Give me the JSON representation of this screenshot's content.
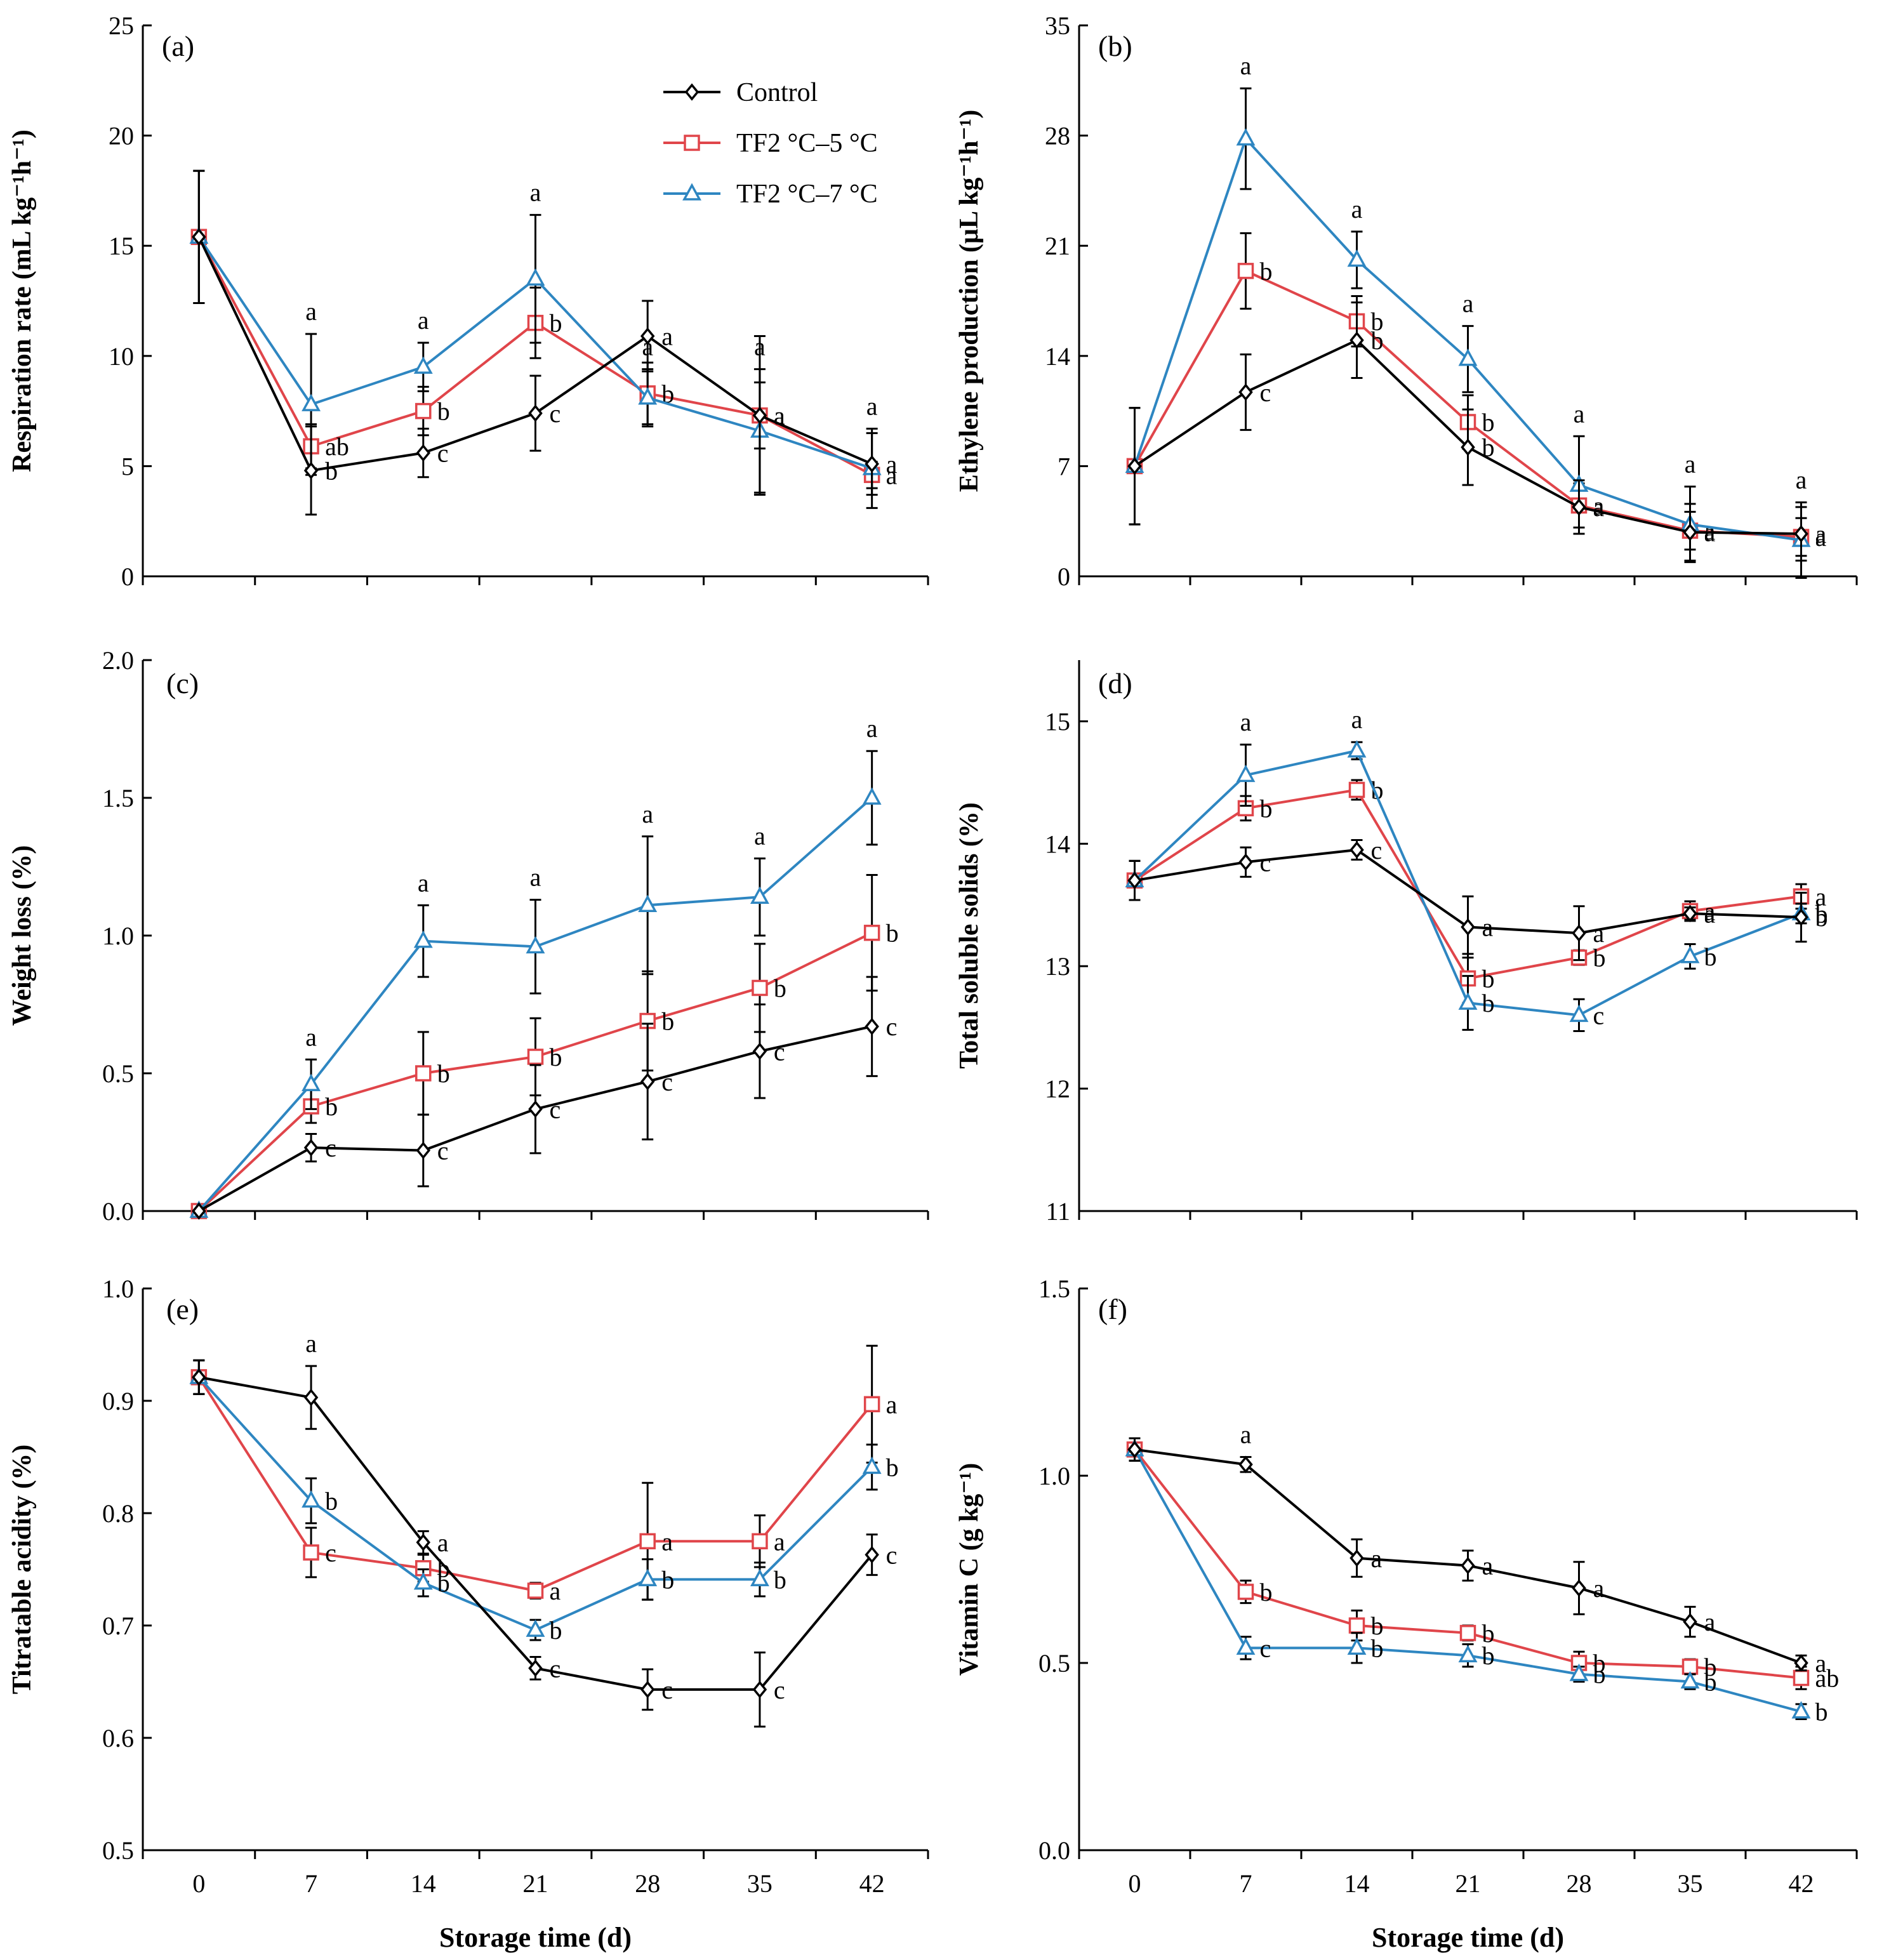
{
  "figure": {
    "series_meta": [
      {
        "name": "Control",
        "color": "#000000",
        "marker": "diamond"
      },
      {
        "name": "TF2 °C–5 °C",
        "color": "#e0454a",
        "marker": "square"
      },
      {
        "name": "TF2 °C–7 °C",
        "color": "#2e86c1",
        "marker": "triangle"
      }
    ],
    "x_label": "Storage time (d)"
  },
  "chart_data": [
    {
      "type": "line",
      "panel": "(a)",
      "ylabel": "Respiration rate (mL kg⁻¹h⁻¹)",
      "x": [
        0,
        7,
        14,
        21,
        28,
        35,
        42
      ],
      "xlim": [
        -3.5,
        45.5
      ],
      "ylim": [
        0,
        25
      ],
      "yticks": [
        0,
        5,
        10,
        15,
        20,
        25
      ],
      "yticklabels": [
        "0",
        "5",
        "10",
        "15",
        "20",
        "25"
      ],
      "series": [
        {
          "name": "Control",
          "values": [
            15.4,
            4.8,
            5.6,
            7.4,
            10.9,
            7.3,
            5.1
          ],
          "errors": [
            3.0,
            2.0,
            1.1,
            1.7,
            1.6,
            3.6,
            1.4
          ],
          "labels": [
            "",
            "b",
            "c",
            "c",
            "a",
            "a",
            "a"
          ]
        },
        {
          "name": "TF2 °C–5 °C",
          "values": [
            15.4,
            5.9,
            7.5,
            11.5,
            8.3,
            7.3,
            4.6
          ],
          "errors": [
            3.0,
            1.0,
            1.1,
            1.6,
            1.4,
            1.5,
            0.6
          ],
          "labels": [
            "",
            "ab",
            "b",
            "b",
            "b",
            "a",
            "a"
          ]
        },
        {
          "name": "TF2 °C–7 °C",
          "values": [
            15.4,
            7.8,
            9.5,
            13.5,
            8.1,
            6.6,
            4.9
          ],
          "errors": [
            3.0,
            3.2,
            1.1,
            2.9,
            1.3,
            2.8,
            1.8
          ],
          "labels": [
            "",
            "a",
            "a",
            "a",
            "a",
            "a",
            "a"
          ]
        }
      ]
    },
    {
      "type": "line",
      "panel": "(b)",
      "ylabel": "Ethylene production  (μL kg⁻¹h⁻¹)",
      "x": [
        0,
        7,
        14,
        21,
        28,
        35,
        42
      ],
      "xlim": [
        -3.5,
        45.5
      ],
      "ylim": [
        0,
        35
      ],
      "yticks": [
        0,
        7,
        14,
        21,
        28,
        35
      ],
      "yticklabels": [
        "0",
        "7",
        "14",
        "21",
        "28",
        "35"
      ],
      "series": [
        {
          "name": "Control",
          "values": [
            7.0,
            11.7,
            15.0,
            8.2,
            4.4,
            2.8,
            2.7
          ],
          "errors": [
            3.7,
            2.4,
            2.4,
            2.4,
            1.7,
            1.8,
            1.7
          ],
          "labels": [
            "",
            "c",
            "b",
            "b",
            "a",
            "a",
            "a"
          ]
        },
        {
          "name": "TF2 °C–5 °C",
          "values": [
            7.0,
            19.4,
            16.2,
            9.8,
            4.5,
            2.9,
            2.5
          ],
          "errors": [
            3.7,
            2.4,
            1.6,
            1.7,
            1.4,
            1.2,
            1.2
          ],
          "labels": [
            "",
            "b",
            "b",
            "b",
            "a",
            "a",
            "a"
          ]
        },
        {
          "name": "TF2 °C–7 °C",
          "values": [
            7.0,
            27.8,
            20.1,
            13.8,
            5.8,
            3.3,
            2.3
          ],
          "errors": [
            3.7,
            3.2,
            1.8,
            2.1,
            3.1,
            2.4,
            2.4
          ],
          "labels": [
            "",
            "a",
            "a",
            "a",
            "a",
            "a",
            "a"
          ]
        }
      ]
    },
    {
      "type": "line",
      "panel": "(c)",
      "ylabel": "Weight loss (%)",
      "x": [
        0,
        7,
        14,
        21,
        28,
        35,
        42
      ],
      "xlim": [
        -3.5,
        45.5
      ],
      "ylim": [
        0,
        2.0
      ],
      "yticks": [
        0,
        0.5,
        1.0,
        1.5,
        2.0
      ],
      "yticklabels": [
        "0.0",
        "0.5",
        "1.0",
        "1.5",
        "2.0"
      ],
      "series": [
        {
          "name": "Control",
          "values": [
            0.0,
            0.23,
            0.22,
            0.37,
            0.47,
            0.58,
            0.67
          ],
          "errors": [
            0,
            0.05,
            0.13,
            0.16,
            0.21,
            0.17,
            0.18
          ],
          "labels": [
            "",
            "c",
            "c",
            "c",
            "c",
            "c",
            "c"
          ]
        },
        {
          "name": "TF2 °C–5 °C",
          "values": [
            0.0,
            0.38,
            0.5,
            0.56,
            0.69,
            0.81,
            1.01
          ],
          "errors": [
            0,
            0.06,
            0.15,
            0.14,
            0.18,
            0.16,
            0.21
          ],
          "labels": [
            "",
            "b",
            "b",
            "b",
            "b",
            "b",
            "b"
          ]
        },
        {
          "name": "TF2 °C–7 °C",
          "values": [
            0.0,
            0.46,
            0.98,
            0.96,
            1.11,
            1.14,
            1.5
          ],
          "errors": [
            0,
            0.09,
            0.13,
            0.17,
            0.25,
            0.14,
            0.17
          ],
          "labels": [
            "",
            "a",
            "a",
            "a",
            "a",
            "a",
            "a"
          ]
        }
      ]
    },
    {
      "type": "line",
      "panel": "(d)",
      "ylabel": "Total soluble solids (%)",
      "x": [
        0,
        7,
        14,
        21,
        28,
        35,
        42
      ],
      "xlim": [
        -3.5,
        45.5
      ],
      "ylim": [
        11,
        15.5
      ],
      "yticks": [
        11,
        12,
        13,
        14,
        15
      ],
      "yticklabels": [
        "11",
        "12",
        "13",
        "14",
        "15"
      ],
      "series": [
        {
          "name": "Control",
          "values": [
            13.7,
            13.85,
            13.95,
            13.32,
            13.27,
            13.43,
            13.4
          ],
          "errors": [
            0.16,
            0.12,
            0.08,
            0.25,
            0.22,
            0.05,
            0.2
          ],
          "labels": [
            "",
            "c",
            "c",
            "a",
            "a",
            "a",
            "b"
          ]
        },
        {
          "name": "TF2 °C–5 °C",
          "values": [
            13.7,
            14.29,
            14.44,
            12.9,
            13.07,
            13.45,
            13.57
          ],
          "errors": [
            0.16,
            0.1,
            0.08,
            0.2,
            0.06,
            0.08,
            0.1
          ],
          "labels": [
            "",
            "b",
            "b",
            "b",
            "b",
            "a",
            "a"
          ]
        },
        {
          "name": "TF2 °C–7 °C",
          "values": [
            13.7,
            14.56,
            14.76,
            12.7,
            12.6,
            13.08,
            13.43
          ],
          "errors": [
            0.16,
            0.25,
            0.07,
            0.22,
            0.13,
            0.1,
            0.08
          ],
          "labels": [
            "",
            "a",
            "a",
            "b",
            "c",
            "b",
            "b"
          ]
        }
      ]
    },
    {
      "type": "line",
      "panel": "(e)",
      "ylabel": "Titratable acidity (%)",
      "x": [
        0,
        7,
        14,
        21,
        28,
        35,
        42
      ],
      "xlim": [
        -3.5,
        45.5
      ],
      "ylim": [
        0.5,
        1.0
      ],
      "yticks": [
        0.5,
        0.6,
        0.7,
        0.8,
        0.9,
        1.0
      ],
      "yticklabels": [
        "0.5",
        "0.6",
        "0.7",
        "0.8",
        "0.9",
        "1.0"
      ],
      "series": [
        {
          "name": "Control",
          "values": [
            0.921,
            0.903,
            0.774,
            0.662,
            0.643,
            0.643,
            0.763
          ],
          "errors": [
            0.015,
            0.028,
            0.01,
            0.01,
            0.018,
            0.033,
            0.018
          ],
          "labels": [
            "",
            "a",
            "a",
            "c",
            "c",
            "c",
            "c"
          ]
        },
        {
          "name": "TF2 °C–5 °C",
          "values": [
            0.921,
            0.765,
            0.751,
            0.731,
            0.775,
            0.775,
            0.897
          ],
          "errors": [
            0.015,
            0.022,
            0.012,
            0.007,
            0.052,
            0.023,
            0.052
          ],
          "labels": [
            "",
            "c",
            "b",
            "a",
            "a",
            "a",
            "a"
          ]
        },
        {
          "name": "TF2 °C–7 °C",
          "values": [
            0.921,
            0.811,
            0.738,
            0.696,
            0.741,
            0.741,
            0.841
          ],
          "errors": [
            0.015,
            0.02,
            0.012,
            0.009,
            0.018,
            0.015,
            0.02
          ],
          "labels": [
            "",
            "b",
            "b",
            "b",
            "b",
            "b",
            "b"
          ]
        }
      ]
    },
    {
      "type": "line",
      "panel": "(f)",
      "ylabel": "Vitamin C (g kg⁻¹)",
      "x": [
        0,
        7,
        14,
        21,
        28,
        35,
        42
      ],
      "xlim": [
        -3.5,
        45.5
      ],
      "ylim": [
        0,
        1.5
      ],
      "yticks": [
        0,
        0.5,
        1.0,
        1.5
      ],
      "yticklabels": [
        "0.0",
        "0.5",
        "1.0",
        "1.5"
      ],
      "series": [
        {
          "name": "Control",
          "values": [
            1.07,
            1.03,
            0.78,
            0.76,
            0.7,
            0.61,
            0.5
          ],
          "errors": [
            0.03,
            0.02,
            0.05,
            0.04,
            0.07,
            0.04,
            0.02
          ],
          "labels": [
            "",
            "a",
            "a",
            "a",
            "a",
            "a",
            "a"
          ]
        },
        {
          "name": "TF2 °C–5 °C",
          "values": [
            1.07,
            0.69,
            0.6,
            0.58,
            0.5,
            0.49,
            0.46
          ],
          "errors": [
            0.03,
            0.03,
            0.04,
            0.02,
            0.03,
            0.02,
            0.03
          ],
          "labels": [
            "",
            "b",
            "b",
            "b",
            "b",
            "b",
            "ab"
          ]
        },
        {
          "name": "TF2 °C–7 °C",
          "values": [
            1.07,
            0.54,
            0.54,
            0.52,
            0.47,
            0.45,
            0.37
          ],
          "errors": [
            0.03,
            0.03,
            0.04,
            0.03,
            0.02,
            0.02,
            0.02
          ],
          "labels": [
            "",
            "c",
            "b",
            "b",
            "b",
            "b",
            "b"
          ]
        }
      ]
    }
  ]
}
